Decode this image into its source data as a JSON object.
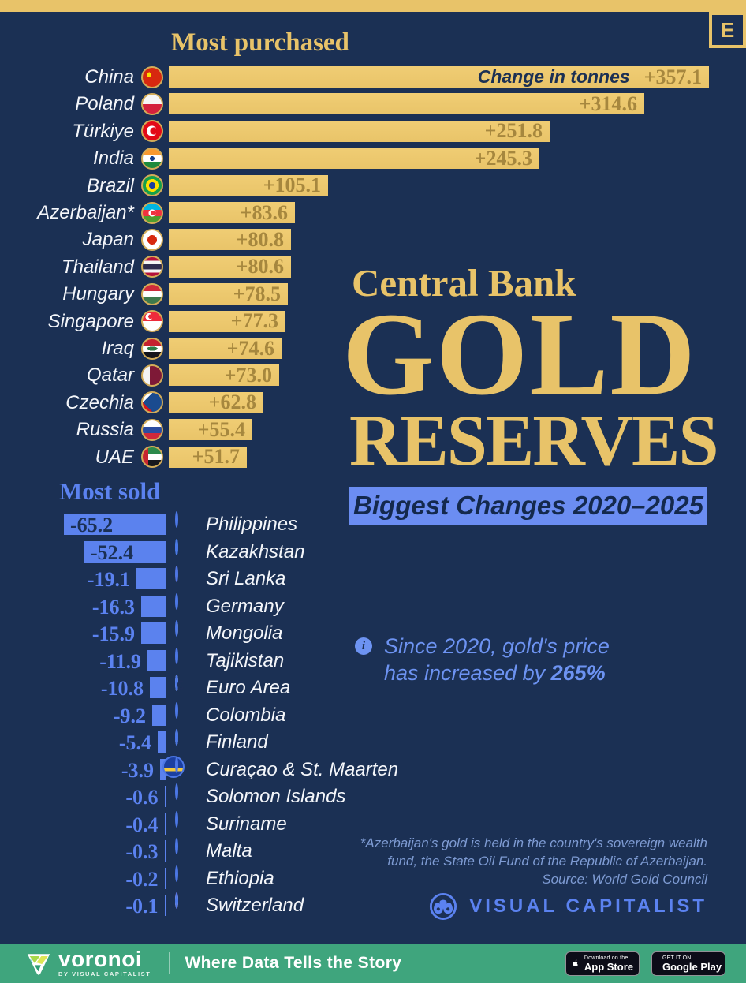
{
  "page": {
    "badge": "E"
  },
  "purchased": {
    "title": "Most purchased",
    "axis_label": "Change in tonnes",
    "rows": [
      {
        "country": "China",
        "flag": "china",
        "value": 357.1,
        "display": "+357.1"
      },
      {
        "country": "Poland",
        "flag": "poland",
        "value": 314.6,
        "display": "+314.6"
      },
      {
        "country": "Türkiye",
        "flag": "turkiye",
        "value": 251.8,
        "display": "+251.8"
      },
      {
        "country": "India",
        "flag": "india",
        "value": 245.3,
        "display": "+245.3"
      },
      {
        "country": "Brazil",
        "flag": "brazil",
        "value": 105.1,
        "display": "+105.1"
      },
      {
        "country": "Azerbaijan*",
        "flag": "azerbaijan",
        "value": 83.6,
        "display": "+83.6"
      },
      {
        "country": "Japan",
        "flag": "japan",
        "value": 80.8,
        "display": "+80.8"
      },
      {
        "country": "Thailand",
        "flag": "thailand",
        "value": 80.6,
        "display": "+80.6"
      },
      {
        "country": "Hungary",
        "flag": "hungary",
        "value": 78.5,
        "display": "+78.5"
      },
      {
        "country": "Singapore",
        "flag": "singapore",
        "value": 77.3,
        "display": "+77.3"
      },
      {
        "country": "Iraq",
        "flag": "iraq",
        "value": 74.6,
        "display": "+74.6"
      },
      {
        "country": "Qatar",
        "flag": "qatar",
        "value": 73.0,
        "display": "+73.0"
      },
      {
        "country": "Czechia",
        "flag": "czechia",
        "value": 62.8,
        "display": "+62.8"
      },
      {
        "country": "Russia",
        "flag": "russia",
        "value": 55.4,
        "display": "+55.4"
      },
      {
        "country": "UAE",
        "flag": "uae",
        "value": 51.7,
        "display": "+51.7"
      }
    ]
  },
  "sold": {
    "title": "Most sold",
    "rows": [
      {
        "country": "Philippines",
        "flag": "philippines",
        "value": 65.2,
        "display": "-65.2"
      },
      {
        "country": "Kazakhstan",
        "flag": "kazakhstan",
        "value": 52.4,
        "display": "-52.4"
      },
      {
        "country": "Sri Lanka",
        "flag": "sri-lanka",
        "value": 19.1,
        "display": "-19.1"
      },
      {
        "country": "Germany",
        "flag": "germany",
        "value": 16.3,
        "display": "-16.3"
      },
      {
        "country": "Mongolia",
        "flag": "mongolia",
        "value": 15.9,
        "display": "-15.9"
      },
      {
        "country": "Tajikistan",
        "flag": "tajikistan",
        "value": 11.9,
        "display": "-11.9"
      },
      {
        "country": "Euro Area",
        "flag": "euro-area",
        "value": 10.8,
        "display": "-10.8"
      },
      {
        "country": "Colombia",
        "flag": "colombia",
        "value": 9.2,
        "display": "-9.2"
      },
      {
        "country": "Finland",
        "flag": "finland",
        "value": 5.4,
        "display": "-5.4"
      },
      {
        "country": "Curaçao & St. Maarten",
        "flag": "curacao-st-maarten",
        "value": 3.9,
        "display": "-3.9"
      },
      {
        "country": "Solomon Islands",
        "flag": "solomon-islands",
        "value": 0.6,
        "display": "-0.6"
      },
      {
        "country": "Suriname",
        "flag": "suriname",
        "value": 0.4,
        "display": "-0.4"
      },
      {
        "country": "Malta",
        "flag": "malta",
        "value": 0.3,
        "display": "-0.3"
      },
      {
        "country": "Ethiopia",
        "flag": "ethiopia",
        "value": 0.2,
        "display": "-0.2"
      },
      {
        "country": "Switzerland",
        "flag": "switzerland",
        "value": 0.1,
        "display": "-0.1"
      }
    ]
  },
  "title_block": {
    "kicker": "Central Bank",
    "line1": "GOLD",
    "line2": "RESERVES",
    "subtitle": "Biggest Changes 2020–2025"
  },
  "note": {
    "icon": "info-icon",
    "line1": "Since 2020, gold's price",
    "line2_prefix": "has increased by ",
    "line2_bold": "265%"
  },
  "footnote": {
    "lines": [
      "*Azerbaijan's gold is held in the country's sovereign wealth",
      "fund, the State Oil Fund of the Republic of Azerbaijan.",
      "Source: World Gold Council"
    ]
  },
  "credit": {
    "icon": "binoculars-icon",
    "name": "VISUAL CAPITALIST"
  },
  "footer": {
    "brand": "voronoi",
    "brand_sub": "BY VISUAL CAPITALIST",
    "tagline": "Where Data Tells the Story",
    "appstore": {
      "line1": "Download on the",
      "line2": "App Store"
    },
    "googleplay": {
      "line1": "GET IT ON",
      "line2": "Google Play"
    }
  },
  "colors": {
    "background": "#1b3054",
    "gold": "#e8c369",
    "gold_bar": "#eeca70",
    "gold_value_text": "#a6873e",
    "blue_accent": "#5b82f0",
    "blue_bar": "#5b82ee",
    "subtitle_box": "#6b8df2",
    "footnote_text": "#7e9bd3",
    "footer_green": "#3fa57d"
  },
  "chart_data": [
    {
      "type": "bar",
      "title": "Most purchased",
      "xlabel": "Change in tonnes",
      "categories": [
        "China",
        "Poland",
        "Türkiye",
        "India",
        "Brazil",
        "Azerbaijan*",
        "Japan",
        "Thailand",
        "Hungary",
        "Singapore",
        "Iraq",
        "Qatar",
        "Czechia",
        "Russia",
        "UAE"
      ],
      "values": [
        357.1,
        314.6,
        251.8,
        245.3,
        105.1,
        83.6,
        80.8,
        80.6,
        78.5,
        77.3,
        74.6,
        73.0,
        62.8,
        55.4,
        51.7
      ],
      "orientation": "horizontal",
      "unit": "tonnes"
    },
    {
      "type": "bar",
      "title": "Most sold",
      "xlabel": "Change in tonnes",
      "categories": [
        "Philippines",
        "Kazakhstan",
        "Sri Lanka",
        "Germany",
        "Mongolia",
        "Tajikistan",
        "Euro Area",
        "Colombia",
        "Finland",
        "Curaçao & St. Maarten",
        "Solomon Islands",
        "Suriname",
        "Malta",
        "Ethiopia",
        "Switzerland"
      ],
      "values": [
        -65.2,
        -52.4,
        -19.1,
        -16.3,
        -15.9,
        -11.9,
        -10.8,
        -9.2,
        -5.4,
        -3.9,
        -0.6,
        -0.4,
        -0.3,
        -0.2,
        -0.1
      ],
      "orientation": "horizontal",
      "unit": "tonnes"
    }
  ]
}
